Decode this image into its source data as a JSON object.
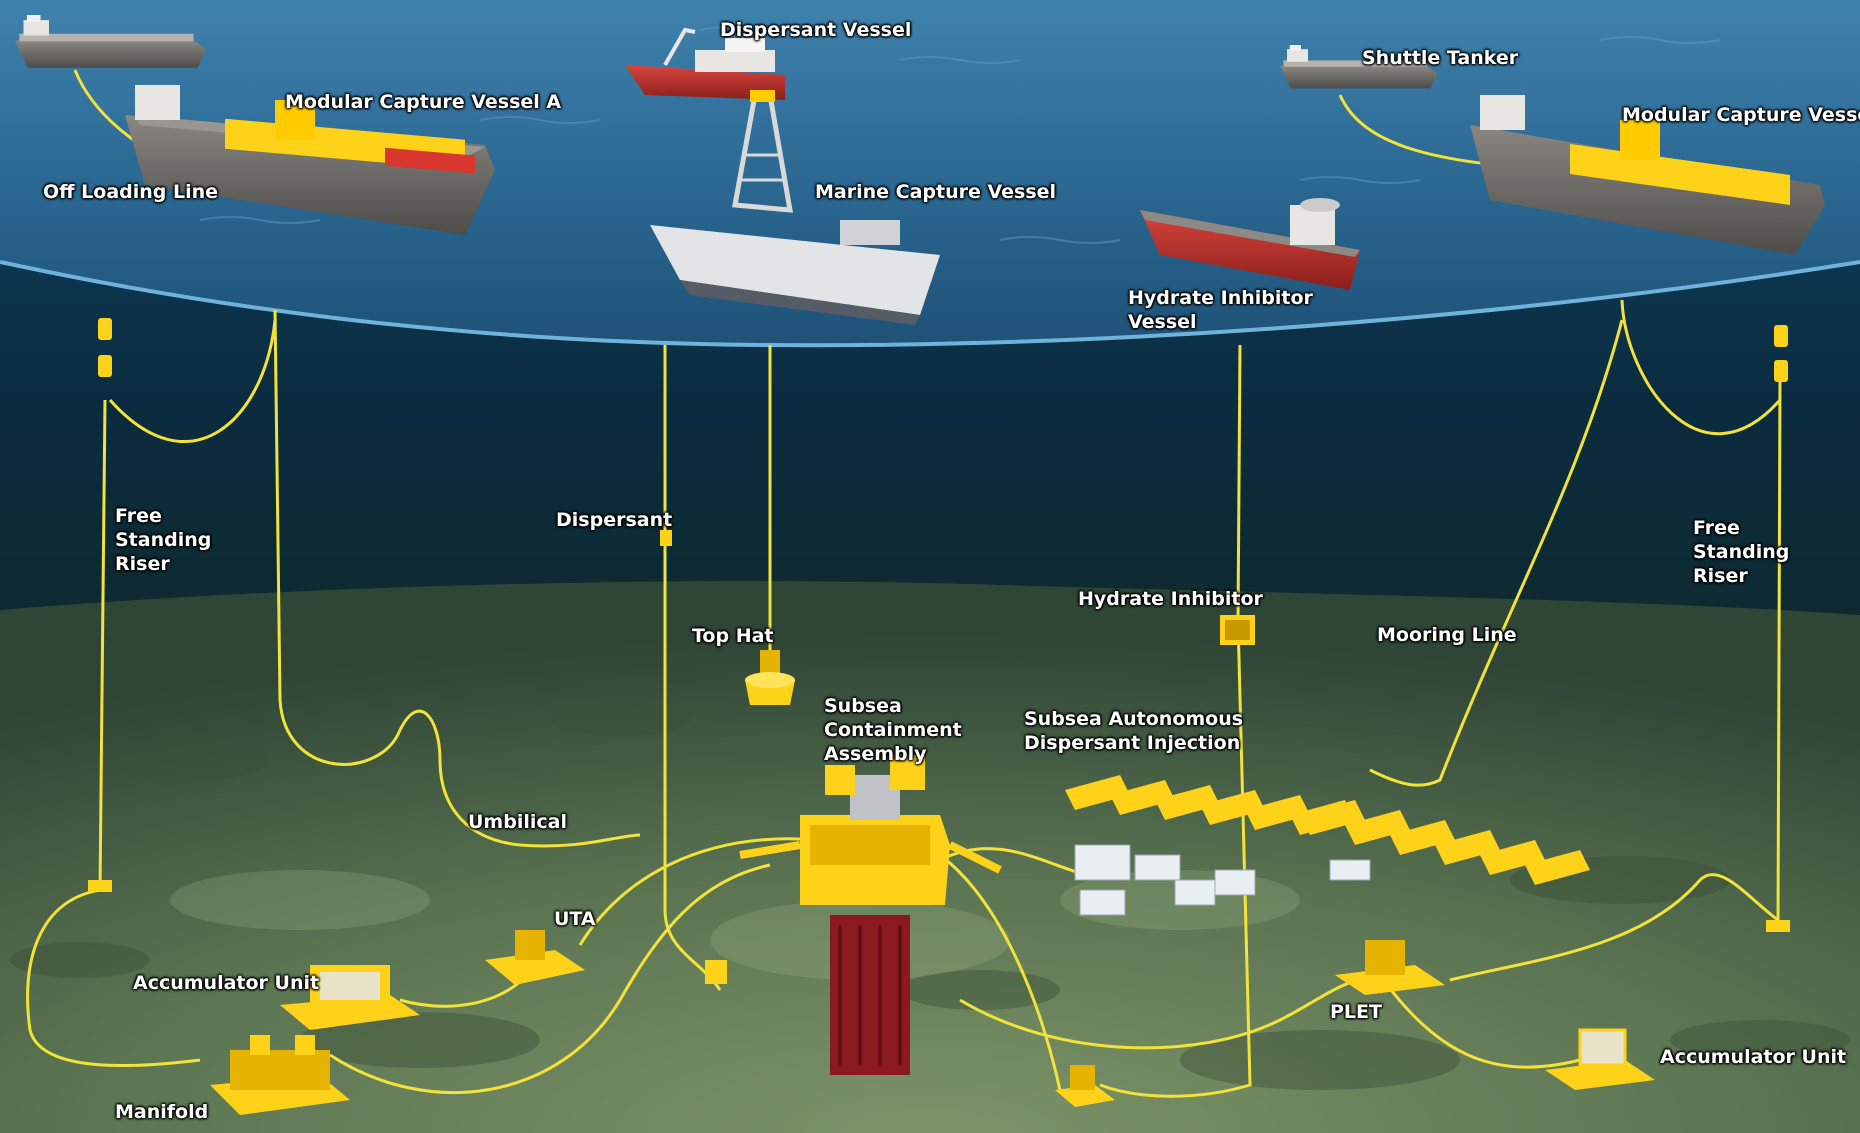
{
  "colors": {
    "sea_surface": "#2f6f9a",
    "deep_water": "#0a2233",
    "seabed": "#56704a",
    "equipment": "#ffd21a",
    "line": "#f2e23a",
    "hull_red": "#c0302b",
    "hull_grey": "#6d6a66",
    "bop_red": "#8a1a20"
  },
  "labels": {
    "dispersant_vessel": "Dispersant Vessel",
    "shuttle_tanker": "Shuttle Tanker",
    "modular_capture_vessel_a": "Modular Capture Vessel A",
    "modular_capture_vessel_b": "Modular Capture Vessel B",
    "off_loading_line": "Off Loading Line",
    "marine_capture_vessel": "Marine Capture Vessel",
    "hydrate_inhibitor_vessel": [
      "Hydrate Inhibitor",
      "Vessel"
    ],
    "free_standing_riser_left": [
      "Free",
      "Standing",
      "Riser"
    ],
    "free_standing_riser_right": [
      "Free",
      "Standing",
      "Riser"
    ],
    "dispersant": "Dispersant",
    "top_hat": "Top Hat",
    "hydrate_inhibitor": "Hydrate Inhibitor",
    "mooring_line": "Mooring Line",
    "subsea_containment_assembly": [
      "Subsea",
      "Containment",
      "Assembly"
    ],
    "subsea_autonomous_dispersant_injection": [
      "Subsea Autonomous",
      "Dispersant Injection"
    ],
    "umbilical": "Umbilical",
    "uta": "UTA",
    "accumulator_unit_left": "Accumulator Unit",
    "accumulator_unit_right": "Accumulator Unit",
    "plet": "PLET",
    "manifold": "Manifold"
  },
  "icons": {
    "vessels": [
      "dispersant-vessel-icon",
      "shuttle-tanker-icon",
      "modular-capture-vessel-icon",
      "marine-capture-vessel-icon",
      "hydrate-inhibitor-vessel-icon",
      "tanker-icon"
    ],
    "subsea": [
      "riser-buoy-icon",
      "top-hat-icon",
      "containment-assembly-icon",
      "dispersant-skid-icon",
      "uta-icon",
      "accumulator-unit-icon",
      "plet-icon",
      "manifold-icon"
    ]
  }
}
